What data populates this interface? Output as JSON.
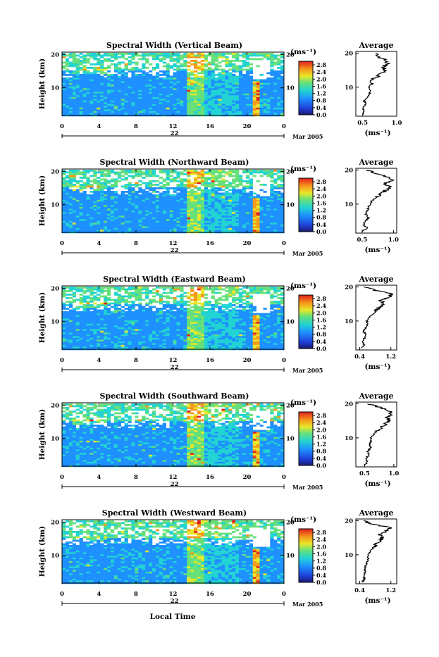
{
  "footer": {
    "xlabel": "Local Time"
  },
  "panels": [
    {
      "title": "Spectral Width (Vertical Beam)",
      "ylabel": "Height (km)",
      "unit": "(ms⁻¹)",
      "day_label": "22",
      "date_label": "Mar 2005",
      "avg_title": "Average",
      "avg_xlabel": "(ms⁻¹)"
    },
    {
      "title": "Spectral Width (Northward Beam)",
      "ylabel": "Height (km)",
      "unit": "(ms⁻¹)",
      "day_label": "22",
      "date_label": "Mar 2005",
      "avg_title": "Average",
      "avg_xlabel": "(ms⁻¹)"
    },
    {
      "title": "Spectral Width (Eastward Beam)",
      "ylabel": "Height (km)",
      "unit": "(ms⁻¹)",
      "day_label": "22",
      "date_label": "Mar 2005",
      "avg_title": "Average",
      "avg_xlabel": "(ms⁻¹)"
    },
    {
      "title": "Spectral Width (Southward Beam)",
      "ylabel": "Height (km)",
      "unit": "(ms⁻¹)",
      "day_label": "22",
      "date_label": "Mar 2005",
      "avg_title": "Average",
      "avg_xlabel": "(ms⁻¹)"
    },
    {
      "title": "Spectral Width (Westward Beam)",
      "ylabel": "Height (km)",
      "unit": "(ms⁻¹)",
      "day_label": "22",
      "date_label": "Mar 2005",
      "avg_title": "Average",
      "avg_xlabel": "(ms⁻¹)"
    }
  ],
  "chart_data": [
    {
      "type": "heatmap",
      "title": "Spectral Width (Vertical Beam)",
      "ylabel": "Height (km)",
      "xlabel": "Local Time",
      "x_ticks": [
        "0",
        "4",
        "8",
        "12",
        "16",
        "20",
        "0"
      ],
      "y_ticks": [
        "10",
        "20"
      ],
      "xlim": [
        0,
        24
      ],
      "ylim": [
        1.5,
        20.5
      ],
      "colorbar_ticks": [
        "0.0",
        "0.4",
        "0.8",
        "1.2",
        "1.6",
        "2.0",
        "2.4",
        "2.8"
      ],
      "colorbar_range": [
        0,
        3.0
      ],
      "colorbar_unit": "(ms⁻¹)",
      "average_profile": {
        "title": "Average",
        "xlabel": "(ms⁻¹)",
        "x_ticks": [
          "0.5",
          "1.0"
        ],
        "xlim": [
          0.4,
          1.0
        ],
        "y_ticks": [
          "10",
          "20"
        ],
        "height_km": [
          2,
          3,
          4,
          5,
          6,
          7,
          8,
          9,
          10,
          11,
          12,
          13,
          14,
          15,
          16,
          17,
          18,
          19,
          20
        ],
        "width": [
          0.5,
          0.52,
          0.5,
          0.55,
          0.52,
          0.56,
          0.6,
          0.62,
          0.58,
          0.64,
          0.6,
          0.7,
          0.78,
          0.84,
          0.8,
          0.86,
          0.83,
          0.72,
          0.7
        ]
      }
    },
    {
      "type": "heatmap",
      "title": "Spectral Width (Northward Beam)",
      "ylabel": "Height (km)",
      "xlabel": "Local Time",
      "x_ticks": [
        "0",
        "4",
        "8",
        "12",
        "16",
        "20",
        "0"
      ],
      "y_ticks": [
        "10",
        "20"
      ],
      "xlim": [
        0,
        24
      ],
      "ylim": [
        1.5,
        20.5
      ],
      "colorbar_ticks": [
        "0.0",
        "0.4",
        "0.8",
        "1.2",
        "1.6",
        "2.0",
        "2.4",
        "2.8"
      ],
      "colorbar_range": [
        0,
        3.0
      ],
      "colorbar_unit": "(ms⁻¹)",
      "average_profile": {
        "title": "Average",
        "xlabel": "(ms⁻¹)",
        "x_ticks": [
          "0.5",
          "1.0"
        ],
        "xlim": [
          0.4,
          1.05
        ],
        "y_ticks": [
          "10",
          "20"
        ],
        "height_km": [
          2,
          3,
          4,
          5,
          6,
          7,
          8,
          9,
          10,
          11,
          12,
          13,
          14,
          15,
          16,
          17,
          18,
          19,
          20
        ],
        "width": [
          0.5,
          0.58,
          0.52,
          0.55,
          0.6,
          0.56,
          0.58,
          0.6,
          0.62,
          0.66,
          0.72,
          0.8,
          0.88,
          0.95,
          0.85,
          0.98,
          0.9,
          0.7,
          0.6
        ]
      }
    },
    {
      "type": "heatmap",
      "title": "Spectral Width (Eastward Beam)",
      "ylabel": "Height (km)",
      "xlabel": "Local Time",
      "x_ticks": [
        "0",
        "4",
        "8",
        "12",
        "16",
        "20",
        "0"
      ],
      "y_ticks": [
        "10",
        "20"
      ],
      "xlim": [
        0,
        24
      ],
      "ylim": [
        1.5,
        20.5
      ],
      "colorbar_ticks": [
        "0.0",
        "0.4",
        "0.8",
        "1.2",
        "1.6",
        "2.0",
        "2.4",
        "2.8"
      ],
      "colorbar_range": [
        0,
        3.0
      ],
      "colorbar_unit": "(ms⁻¹)",
      "average_profile": {
        "title": "Average",
        "xlabel": "(ms⁻¹)",
        "x_ticks": [
          "0.4",
          "1.2"
        ],
        "xlim": [
          0.3,
          1.35
        ],
        "y_ticks": [
          "10",
          "20"
        ],
        "height_km": [
          2,
          3,
          4,
          5,
          6,
          7,
          8,
          9,
          10,
          11,
          12,
          13,
          14,
          15,
          16,
          17,
          18,
          19,
          20
        ],
        "width": [
          0.45,
          0.5,
          0.48,
          0.52,
          0.55,
          0.5,
          0.55,
          0.6,
          0.58,
          0.65,
          0.72,
          0.8,
          0.9,
          1.0,
          0.95,
          1.15,
          1.25,
          0.8,
          0.5
        ]
      }
    },
    {
      "type": "heatmap",
      "title": "Spectral Width (Southward Beam)",
      "ylabel": "Height (km)",
      "xlabel": "Local Time",
      "x_ticks": [
        "0",
        "4",
        "8",
        "12",
        "16",
        "20",
        "0"
      ],
      "y_ticks": [
        "10",
        "20"
      ],
      "xlim": [
        0,
        24
      ],
      "ylim": [
        1.5,
        20.5
      ],
      "colorbar_ticks": [
        "0.0",
        "0.4",
        "0.8",
        "1.2",
        "1.6",
        "2.0",
        "2.4",
        "2.8"
      ],
      "colorbar_range": [
        0,
        3.0
      ],
      "colorbar_unit": "(ms⁻¹)",
      "average_profile": {
        "title": "Average",
        "xlabel": "(ms⁻¹)",
        "x_ticks": [
          "0.5",
          "1.0"
        ],
        "xlim": [
          0.35,
          1.05
        ],
        "y_ticks": [
          "10",
          "20"
        ],
        "height_km": [
          2,
          3,
          4,
          5,
          6,
          7,
          8,
          9,
          10,
          11,
          12,
          13,
          14,
          15,
          16,
          17,
          18,
          19,
          20
        ],
        "width": [
          0.5,
          0.55,
          0.52,
          0.58,
          0.55,
          0.6,
          0.58,
          0.62,
          0.6,
          0.66,
          0.7,
          0.78,
          0.85,
          0.92,
          0.88,
          0.95,
          0.9,
          0.75,
          0.55
        ]
      }
    },
    {
      "type": "heatmap",
      "title": "Spectral Width (Westward Beam)",
      "ylabel": "Height (km)",
      "xlabel": "Local Time",
      "x_ticks": [
        "0",
        "4",
        "8",
        "12",
        "16",
        "20",
        "0"
      ],
      "y_ticks": [
        "10",
        "20"
      ],
      "xlim": [
        0,
        24
      ],
      "ylim": [
        1.5,
        20.5
      ],
      "colorbar_ticks": [
        "0.0",
        "0.4",
        "0.8",
        "1.2",
        "1.6",
        "2.0",
        "2.4",
        "2.8"
      ],
      "colorbar_range": [
        0,
        3.0
      ],
      "colorbar_unit": "(ms⁻¹)",
      "average_profile": {
        "title": "Average",
        "xlabel": "(ms⁻¹)",
        "x_ticks": [
          "0.4",
          "1.2"
        ],
        "xlim": [
          0.3,
          1.35
        ],
        "y_ticks": [
          "10",
          "20"
        ],
        "height_km": [
          2,
          3,
          4,
          5,
          6,
          7,
          8,
          9,
          10,
          11,
          12,
          13,
          14,
          15,
          16,
          17,
          18,
          19,
          20
        ],
        "width": [
          0.48,
          0.52,
          0.5,
          0.55,
          0.52,
          0.56,
          0.6,
          0.62,
          0.6,
          0.68,
          0.75,
          0.82,
          0.9,
          0.98,
          0.92,
          1.1,
          1.2,
          0.7,
          0.5
        ]
      }
    }
  ]
}
